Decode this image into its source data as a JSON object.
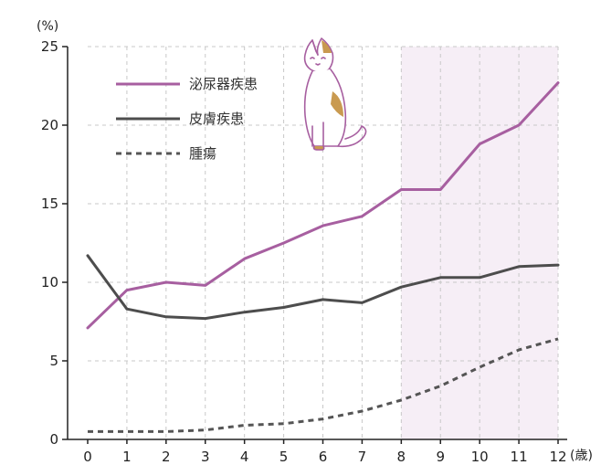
{
  "chart_data": {
    "type": "line",
    "title": "",
    "xlabel": "",
    "ylabel": "",
    "y_unit_label": "(%)",
    "x_unit_label": "(歳)",
    "x": [
      0,
      1,
      2,
      3,
      4,
      5,
      6,
      7,
      8,
      9,
      10,
      11,
      12
    ],
    "ylim": [
      0,
      25
    ],
    "yticks": [
      0,
      5,
      10,
      15,
      20,
      25
    ],
    "grid": true,
    "highlight_x_range": [
      8,
      12
    ],
    "legend_position": "top-left",
    "series": [
      {
        "name": "泌尿器疾患",
        "color": "#a75fa0",
        "style": "solid",
        "values": [
          7.1,
          9.5,
          10.0,
          9.8,
          11.5,
          12.5,
          13.6,
          14.2,
          15.9,
          15.9,
          18.8,
          20.0,
          22.7
        ]
      },
      {
        "name": "皮膚疾患",
        "color": "#4d4d4d",
        "style": "solid",
        "values": [
          11.7,
          8.3,
          7.8,
          7.7,
          8.1,
          8.4,
          8.9,
          8.7,
          9.7,
          10.3,
          10.3,
          11.0,
          11.1
        ]
      },
      {
        "name": "腫瘍",
        "color": "#555555",
        "style": "dashed",
        "values": [
          0.5,
          0.5,
          0.5,
          0.6,
          0.9,
          1.0,
          1.3,
          1.8,
          2.5,
          3.4,
          4.6,
          5.7,
          6.4
        ]
      }
    ]
  },
  "colors": {
    "highlight_band": "#f6eef6",
    "grid": "#c8c8c8",
    "axis": "#222222"
  },
  "illustration": {
    "icon": "sitting-cat-icon"
  }
}
